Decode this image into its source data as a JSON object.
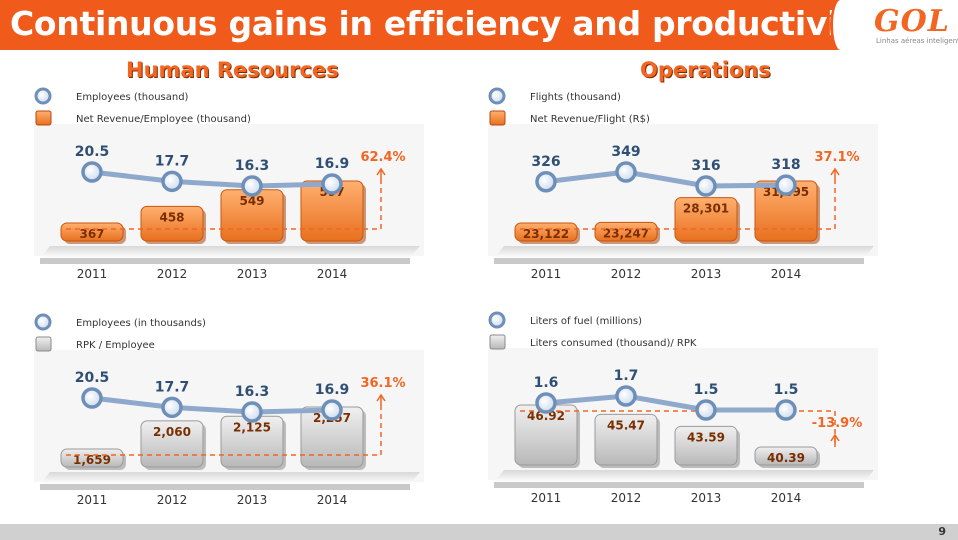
{
  "header": {
    "title": "Continuous gains in efficiency and productivity",
    "logo_text": "GOL",
    "logo_subtitle": "Linhas aéreas inteligentes"
  },
  "sections": {
    "left": "Human Resources",
    "right": "Operations"
  },
  "footer": {
    "page_number": "9"
  },
  "colors": {
    "orange": "#f26522",
    "orange_bar_top": "#ffb070",
    "orange_bar_bottom": "#e8701e",
    "gray_bar_top": "#f0f0f0",
    "gray_bar_bottom": "#b8b8b8",
    "line_blue": "#8fa9cc",
    "value_blue": "#2f4f74",
    "bar_label": "#7a2e00"
  },
  "chart_data": [
    {
      "id": "hr-revenue",
      "type": "bar",
      "bar_style": "orange",
      "categories": [
        "2011",
        "2012",
        "2013",
        "2014"
      ],
      "legend": [
        "Employees (thousand)",
        "Net Revenue/Employee  (thousand)"
      ],
      "line": {
        "name": "Employees (thousand)",
        "values": [
          20.5,
          17.7,
          16.3,
          16.9
        ],
        "labels": [
          "20.5",
          "17.7",
          "16.3",
          "16.9"
        ]
      },
      "bars": {
        "name": "Net Revenue/Employee (thousand)",
        "values": [
          367,
          458,
          549,
          597
        ],
        "labels": [
          "367",
          "458",
          "549",
          "597"
        ]
      },
      "growth_label": "62.4%"
    },
    {
      "id": "ops-revenue",
      "type": "bar",
      "bar_style": "orange",
      "categories": [
        "2011",
        "2012",
        "2013",
        "2014"
      ],
      "legend": [
        "Flights (thousand)",
        "Net Revenue/Flight (R$)"
      ],
      "line": {
        "name": "Flights (thousand)",
        "values": [
          326,
          349,
          316,
          318
        ],
        "labels": [
          "326",
          "349",
          "316",
          "318"
        ]
      },
      "bars": {
        "name": "Net Revenue/Flight (R$)",
        "values": [
          23122,
          23247,
          28301,
          31695
        ],
        "labels": [
          "23,122",
          "23,247",
          "28,301",
          "31,695"
        ]
      },
      "growth_label": "37.1%"
    },
    {
      "id": "hr-rpk",
      "type": "bar",
      "bar_style": "gray",
      "categories": [
        "2011",
        "2012",
        "2013",
        "2014"
      ],
      "legend": [
        "Employees  (in thousands)",
        "RPK / Employee"
      ],
      "line": {
        "name": "Employees (in thousands)",
        "values": [
          20.5,
          17.7,
          16.3,
          16.9
        ],
        "labels": [
          "20.5",
          "17.7",
          "16.3",
          "16.9"
        ]
      },
      "bars": {
        "name": "RPK / Employee",
        "values": [
          1659,
          2060,
          2125,
          2257
        ],
        "labels": [
          "1,659",
          "2,060",
          "2,125",
          "2,257"
        ]
      },
      "growth_label": "36.1%"
    },
    {
      "id": "ops-fuel",
      "type": "bar",
      "bar_style": "gray",
      "categories": [
        "2011",
        "2012",
        "2013",
        "2014"
      ],
      "legend": [
        "Liters of fuel (millions)",
        "Liters consumed (thousand)/ RPK"
      ],
      "line": {
        "name": "Liters of fuel (millions)",
        "values": [
          1.6,
          1.7,
          1.5,
          1.5
        ],
        "labels": [
          "1.6",
          "1.7",
          "1.5",
          "1.5"
        ]
      },
      "bars": {
        "name": "Liters consumed (thousand)/ RPK",
        "values": [
          46.92,
          45.47,
          43.59,
          40.39
        ],
        "labels": [
          "46.92",
          "45.47",
          "43.59",
          "40.39"
        ]
      },
      "growth_label": "-13.9%"
    }
  ]
}
